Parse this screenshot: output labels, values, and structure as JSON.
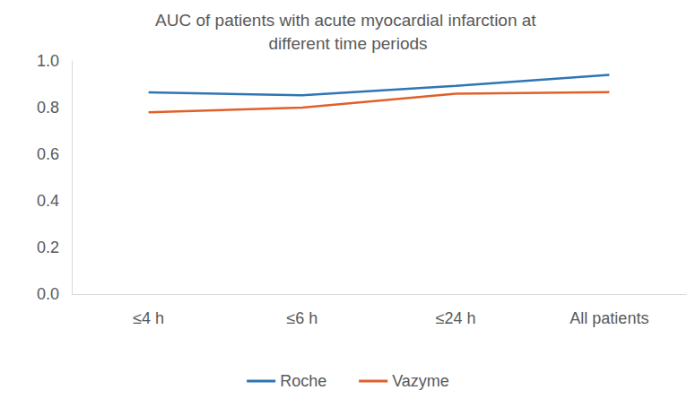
{
  "chart_data": {
    "type": "line",
    "title": "AUC of patients with acute myocardial infarction at different time periods",
    "categories": [
      "≤4 h",
      "≤6 h",
      "≤24 h",
      "All patients"
    ],
    "series": [
      {
        "name": "Roche",
        "color": "#2f75b5",
        "values": [
          0.865,
          0.853,
          0.893,
          0.94
        ]
      },
      {
        "name": "Vazyme",
        "color": "#e0602a",
        "values": [
          0.78,
          0.8,
          0.86,
          0.866
        ]
      }
    ],
    "ylim": [
      0,
      1
    ],
    "yticks": [
      {
        "value": 0,
        "label": "0.0"
      },
      0.2,
      0.4,
      0.6,
      0.8,
      {
        "value": 1,
        "label": "1.0"
      }
    ],
    "grid": false,
    "legend": "bottom",
    "marker": "none",
    "line_style": "solid"
  }
}
